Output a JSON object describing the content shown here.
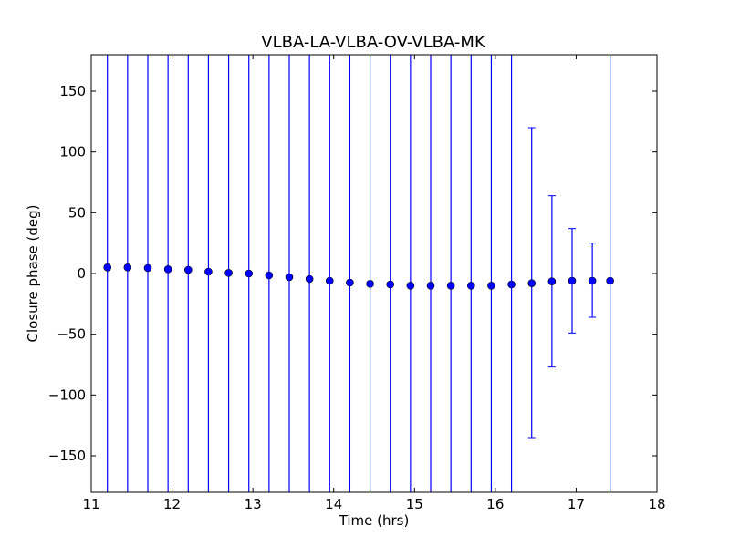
{
  "chart_data": {
    "type": "scatter",
    "title": "VLBA-LA-VLBA-OV-VLBA-MK",
    "xlabel": "Time (hrs)",
    "ylabel": "Closure phase (deg)",
    "xlim": [
      11,
      18
    ],
    "ylim": [
      -180,
      180
    ],
    "grid": false,
    "x_ticks": [
      11,
      12,
      13,
      14,
      15,
      16,
      17,
      18
    ],
    "x_tick_labels": [
      "11",
      "12",
      "13",
      "14",
      "15",
      "16",
      "17",
      "18"
    ],
    "y_ticks": [
      -150,
      -100,
      -50,
      0,
      50,
      100,
      150
    ],
    "y_tick_labels": [
      "−150",
      "−100",
      "−50",
      "0",
      "50",
      "100",
      "150"
    ],
    "series": [
      {
        "color": "#0000ff",
        "marker": "circle",
        "points": [
          {
            "x": 11.2,
            "y": 5.0,
            "err_low": -180,
            "err_high": 180
          },
          {
            "x": 11.45,
            "y": 5.0,
            "err_low": -180,
            "err_high": 180
          },
          {
            "x": 11.7,
            "y": 4.5,
            "err_low": -180,
            "err_high": 180
          },
          {
            "x": 11.95,
            "y": 3.5,
            "err_low": -180,
            "err_high": 180
          },
          {
            "x": 12.2,
            "y": 3.0,
            "err_low": -180,
            "err_high": 180
          },
          {
            "x": 12.45,
            "y": 1.5,
            "err_low": -180,
            "err_high": 180
          },
          {
            "x": 12.7,
            "y": 0.5,
            "err_low": -180,
            "err_high": 180
          },
          {
            "x": 12.95,
            "y": 0.0,
            "err_low": -180,
            "err_high": 180
          },
          {
            "x": 13.2,
            "y": -1.5,
            "err_low": -180,
            "err_high": 180
          },
          {
            "x": 13.45,
            "y": -3.0,
            "err_low": -180,
            "err_high": 180
          },
          {
            "x": 13.7,
            "y": -4.5,
            "err_low": -180,
            "err_high": 180
          },
          {
            "x": 13.95,
            "y": -6.0,
            "err_low": -180,
            "err_high": 180
          },
          {
            "x": 14.2,
            "y": -7.5,
            "err_low": -180,
            "err_high": 180
          },
          {
            "x": 14.45,
            "y": -8.5,
            "err_low": -180,
            "err_high": 180
          },
          {
            "x": 14.7,
            "y": -9.0,
            "err_low": -180,
            "err_high": 180
          },
          {
            "x": 14.95,
            "y": -10.0,
            "err_low": -180,
            "err_high": 180
          },
          {
            "x": 15.2,
            "y": -10.0,
            "err_low": -180,
            "err_high": 180
          },
          {
            "x": 15.45,
            "y": -10.0,
            "err_low": -180,
            "err_high": 180
          },
          {
            "x": 15.7,
            "y": -10.0,
            "err_low": -180,
            "err_high": 180
          },
          {
            "x": 15.95,
            "y": -10.0,
            "err_low": -180,
            "err_high": 180
          },
          {
            "x": 16.2,
            "y": -9.0,
            "err_low": -180,
            "err_high": 180
          },
          {
            "x": 16.45,
            "y": -8.0,
            "err_low": -135,
            "err_high": 120
          },
          {
            "x": 16.7,
            "y": -6.5,
            "err_low": -77,
            "err_high": 64
          },
          {
            "x": 16.95,
            "y": -6.0,
            "err_low": -49,
            "err_high": 37
          },
          {
            "x": 17.2,
            "y": -6.0,
            "err_low": -36,
            "err_high": 25
          },
          {
            "x": 17.42,
            "y": -6.0,
            "err_low": -180,
            "err_high": 180
          }
        ]
      }
    ]
  }
}
